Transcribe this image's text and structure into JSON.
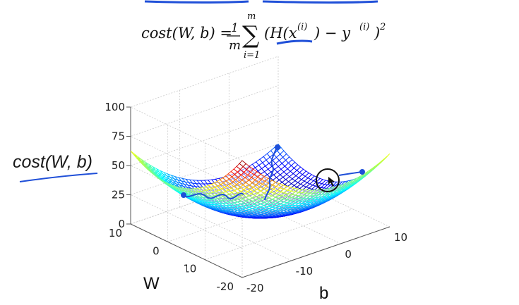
{
  "formula": {
    "lhs": "cost(W, b) =",
    "frac_num": "1",
    "frac_den": "m",
    "sum_top": "m",
    "sum_bottom": "i=1",
    "body": "(H(x",
    "sup_i1": "(i)",
    "mid": ") − y",
    "sup_i2": "(i)",
    "close": ")",
    "sup_2": "2"
  },
  "annotation": {
    "cost_label": "cost(W, b)",
    "pen_color": "#1f4fd8"
  },
  "chart_data": {
    "type": "surface",
    "title": "",
    "surface_function": "cost = 0.125*(W^2 + b^2)",
    "x": {
      "label": "b",
      "range": [
        -20,
        10
      ],
      "ticks": [
        "-20",
        "-10",
        "0",
        "10"
      ]
    },
    "y": {
      "label": "W",
      "range": [
        -20,
        10
      ],
      "ticks": [
        "-20",
        "-10",
        "0",
        "10"
      ]
    },
    "z": {
      "label": "cost(W, b)",
      "range": [
        0,
        100
      ],
      "ticks": [
        "0",
        "25",
        "50",
        "75",
        "100"
      ]
    },
    "grid": true,
    "colormap": "jet",
    "descent_paths": [
      {
        "name": "",
        "points": [
          [
            -20,
            0
          ],
          [
            -10,
            0
          ],
          [
            -3,
            0
          ]
        ]
      },
      {
        "name": "",
        "points": [
          [
            0,
            -9
          ],
          [
            -2,
            -5
          ],
          [
            0,
            0
          ]
        ]
      },
      {
        "name": "",
        "points": [
          [
            12,
            4
          ],
          [
            9,
            3
          ]
        ]
      }
    ]
  }
}
